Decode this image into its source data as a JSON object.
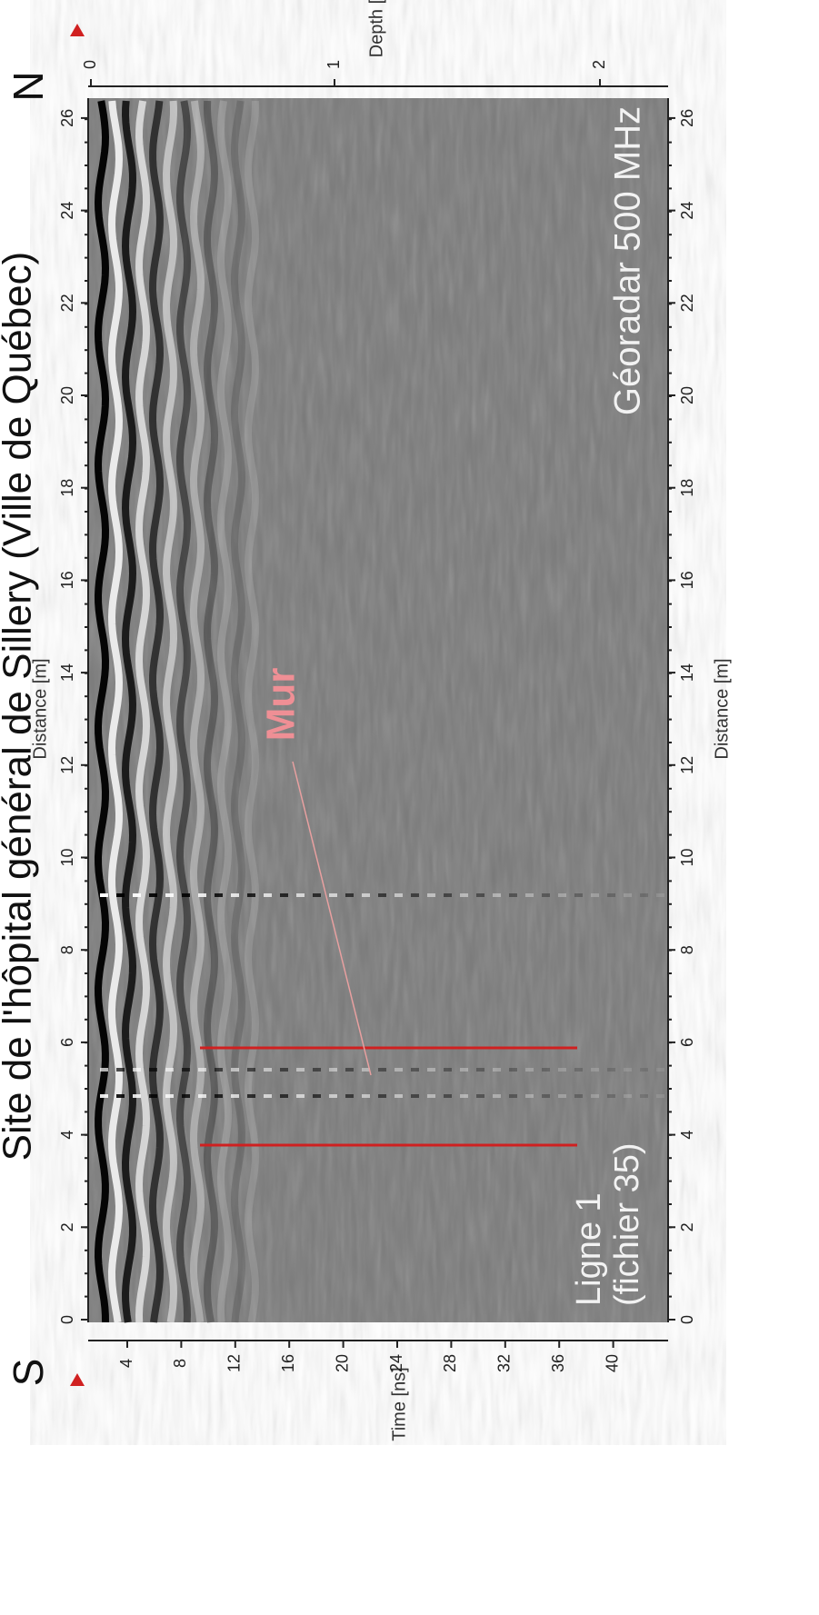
{
  "title": "Site de l'hôpital général de Sillery (Ville de Québec)",
  "compass": {
    "start": "S",
    "end": "N"
  },
  "distance_axis": {
    "label": "Distance [m]",
    "ticks": [
      "0",
      "2",
      "4",
      "6",
      "8",
      "10",
      "12",
      "14",
      "16",
      "18",
      "20",
      "22",
      "24",
      "26"
    ]
  },
  "time_axis": {
    "label": "Time [ns]",
    "ticks": [
      "4",
      "8",
      "12",
      "16",
      "20",
      "24",
      "28",
      "32",
      "36",
      "40"
    ]
  },
  "depth_axis": {
    "label": "Depth [m]",
    "ticks": [
      "0",
      "1",
      "2"
    ]
  },
  "annotations": {
    "instrument": "Géoradar 500 MHz",
    "line": [
      "Ligne 1",
      "(fichier 35)"
    ],
    "feature": "Mur"
  }
}
